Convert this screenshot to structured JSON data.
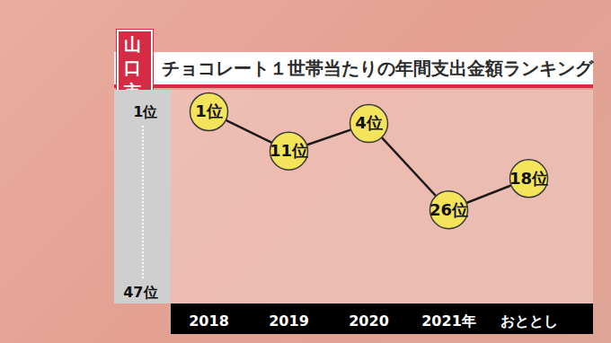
{
  "chart_data": {
    "type": "line",
    "subtitle": "山口市",
    "title": "チョコレート１世帯当たりの年間支出金額ランキング",
    "categories": [
      "2018",
      "2019",
      "2020",
      "2021年",
      "おととし"
    ],
    "values": [
      1,
      11,
      4,
      26,
      18
    ],
    "value_labels": [
      "1位",
      "11位",
      "4位",
      "26位",
      "18位"
    ],
    "data_labels": true,
    "color": "#1a1a1a",
    "marker": "circle",
    "grid": false,
    "ylim": [
      1,
      47
    ],
    "yticks": [
      {
        "value": 1,
        "label": "1位"
      },
      {
        "value": 47,
        "label": "47位"
      }
    ]
  }
}
